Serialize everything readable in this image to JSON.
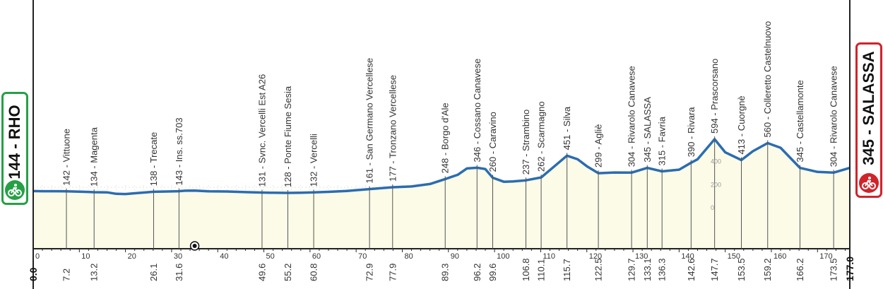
{
  "start_badge": {
    "label": "144 - RHO",
    "color": "#26a046",
    "icon": "bicycle-icon"
  },
  "finish_badge": {
    "label": "345 - SALASSA",
    "color": "#d1232a",
    "icon": "bicycle-icon"
  },
  "colors": {
    "profile_line": "#2b6cb0",
    "profile_fill": "#fbfbe8",
    "axis": "#222222",
    "badge_start": "#26a046",
    "badge_finish": "#d1232a"
  },
  "chart_data": {
    "type": "area",
    "title": "",
    "xlabel": "",
    "ylabel": "",
    "xlim": [
      0,
      177.0
    ],
    "km_ticks": [
      0,
      10,
      20,
      30,
      40,
      50,
      60,
      70,
      80,
      90,
      100,
      110,
      120,
      130,
      140,
      150,
      160,
      170
    ],
    "altitude_labels": [
      400,
      200,
      0
    ],
    "series": [
      {
        "x": [
          0,
          2,
          5,
          7.2,
          10,
          13.2,
          16,
          18,
          20,
          22,
          26.1,
          29,
          31.6,
          33,
          35,
          38,
          42,
          46,
          49.6,
          52,
          55.2,
          58,
          60.8,
          64,
          68,
          72.9,
          77.9,
          82,
          86,
          89.3,
          92,
          94,
          96.2,
          98,
          99.6,
          102,
          104,
          106.8,
          110.1,
          113,
          115.7,
          118,
          120,
          122.5,
          126,
          129.7,
          133.1,
          136.3,
          140,
          142.6,
          144,
          147.7,
          150,
          153.5,
          156,
          159.2,
          162,
          166.2,
          170,
          173.5,
          177.0
        ],
        "y": [
          144,
          143,
          143,
          142,
          139,
          134,
          133,
          120,
          118,
          125,
          138,
          140,
          143,
          147,
          148,
          142,
          140,
          135,
          131,
          129,
          128,
          130,
          132,
          137,
          145,
          161,
          177,
          184,
          205,
          248,
          285,
          340,
          346,
          335,
          260,
          225,
          228,
          237,
          262,
          360,
          451,
          420,
          360,
          299,
          305,
          304,
          345,
          315,
          330,
          390,
          420,
          594,
          480,
          413,
          490,
          560,
          520,
          345,
          310,
          304,
          345
        ]
      }
    ],
    "points": [
      {
        "km": "7.2",
        "x": 7.2,
        "town": "142 - Vittuone"
      },
      {
        "km": "13.2",
        "x": 13.2,
        "town": "134 - Magenta"
      },
      {
        "km": "26.1",
        "x": 26.1,
        "town": "138 - Trecate"
      },
      {
        "km": "31.6",
        "x": 31.6,
        "town": "143 - Ins. ss.703"
      },
      {
        "km": "49.6",
        "x": 49.6,
        "town": "131 - Svnc. Vercelli Est A26"
      },
      {
        "km": "55.2",
        "x": 55.2,
        "town": "128 - Ponte Fiume Sesia"
      },
      {
        "km": "60.8",
        "x": 60.8,
        "town": "132 - Vercelli"
      },
      {
        "km": "72.9",
        "x": 72.9,
        "town": "161 - San Germano Vercellese"
      },
      {
        "km": "77.9",
        "x": 77.9,
        "town": "177 - Tronzano Vercellese"
      },
      {
        "km": "89.3",
        "x": 89.3,
        "town": "248 - Borgo d'Ale"
      },
      {
        "km": "96.2",
        "x": 96.2,
        "town": "346 - Cossano Canavese"
      },
      {
        "km": "99.6",
        "x": 99.6,
        "town": "260 - Caravino"
      },
      {
        "km": "106.8",
        "x": 106.8,
        "town": "237 - Strambino"
      },
      {
        "km": "110.1",
        "x": 110.1,
        "town": "262 - Scarmagno"
      },
      {
        "km": "115.7",
        "x": 115.7,
        "town": "451 - Silva"
      },
      {
        "km": "122.5",
        "x": 122.5,
        "town": "299 - Agliè"
      },
      {
        "km": "129.7",
        "x": 129.7,
        "town": "304 - Rivarolo Canavese"
      },
      {
        "km": "133.1",
        "x": 133.1,
        "town": "345 - SALASSA"
      },
      {
        "km": "136.3",
        "x": 136.3,
        "town": "315 - Favria"
      },
      {
        "km": "142.6",
        "x": 142.6,
        "town": "390 - Rivara"
      },
      {
        "km": "147.7",
        "x": 147.7,
        "town": "594 - Prascorsano"
      },
      {
        "km": "153.5",
        "x": 153.5,
        "town": "413 - Cuorgnè"
      },
      {
        "km": "159.2",
        "x": 159.2,
        "town": "560 - Colleretto Castelnuovo"
      },
      {
        "km": "166.2",
        "x": 166.2,
        "town": "345 - Castellamonte"
      },
      {
        "km": "173.5",
        "x": 173.5,
        "town": "304 - Rivarolo Canavese"
      }
    ],
    "axis_start_label": "0.0",
    "axis_end_label": "177.0",
    "markers": [
      {
        "x": 35,
        "icon": "tunnel-icon"
      }
    ],
    "grid": true
  }
}
